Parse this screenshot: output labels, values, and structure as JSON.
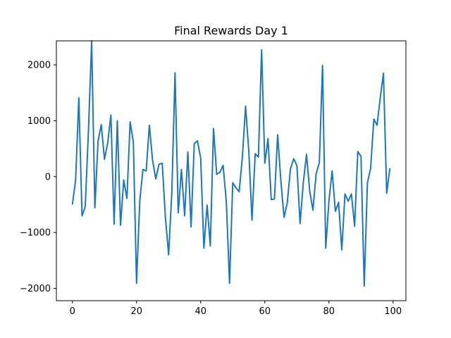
{
  "chart_data": {
    "type": "line",
    "title": "Final Rewards Day 1",
    "xlabel": "",
    "ylabel": "",
    "xlim": [
      -5,
      104
    ],
    "ylim": [
      -2220,
      2430
    ],
    "xticks": [
      0,
      20,
      40,
      60,
      80,
      100
    ],
    "yticks": [
      -2000,
      -1000,
      0,
      1000,
      2000
    ],
    "xtick_labels": [
      "0",
      "20",
      "40",
      "60",
      "80",
      "100"
    ],
    "ytick_labels": [
      "−2000",
      "−1000",
      "0",
      "1000",
      "2000"
    ],
    "grid": false,
    "series": [
      {
        "color": "#1f77b4",
        "x": [
          0,
          1,
          2,
          3,
          4,
          5,
          6,
          7,
          8,
          9,
          10,
          11,
          12,
          13,
          14,
          15,
          16,
          17,
          18,
          19,
          20,
          21,
          22,
          23,
          24,
          25,
          26,
          27,
          28,
          29,
          30,
          31,
          32,
          33,
          34,
          35,
          36,
          37,
          38,
          39,
          40,
          41,
          42,
          43,
          44,
          45,
          46,
          47,
          48,
          49,
          50,
          51,
          52,
          53,
          54,
          55,
          56,
          57,
          58,
          59,
          60,
          61,
          62,
          63,
          64,
          65,
          66,
          67,
          68,
          69,
          70,
          71,
          72,
          73,
          74,
          75,
          76,
          77,
          78,
          79,
          80,
          81,
          82,
          83,
          84,
          85,
          86,
          87,
          88,
          89,
          90,
          91,
          92,
          93,
          94,
          95,
          96,
          97,
          98,
          99
        ],
        "values": [
          -500,
          -60,
          1410,
          -700,
          -540,
          820,
          2430,
          -560,
          640,
          930,
          310,
          600,
          1100,
          -850,
          1000,
          -870,
          -60,
          -390,
          980,
          620,
          -1910,
          -440,
          130,
          100,
          920,
          290,
          -40,
          220,
          240,
          -730,
          -1400,
          -280,
          1860,
          -650,
          130,
          -700,
          440,
          -900,
          590,
          640,
          330,
          -1280,
          -510,
          -1240,
          860,
          40,
          80,
          200,
          -450,
          -1910,
          -110,
          -200,
          -270,
          350,
          1260,
          460,
          -780,
          410,
          350,
          2270,
          240,
          680,
          -410,
          -400,
          750,
          -70,
          -730,
          -470,
          140,
          320,
          200,
          -840,
          -110,
          400,
          -260,
          -600,
          50,
          250,
          1990,
          -1280,
          -430,
          100,
          -620,
          -460,
          -1310,
          -310,
          -440,
          -310,
          -890,
          450,
          360,
          -1960,
          -110,
          150,
          1030,
          920,
          1410,
          1850,
          -300,
          150
        ]
      }
    ]
  }
}
